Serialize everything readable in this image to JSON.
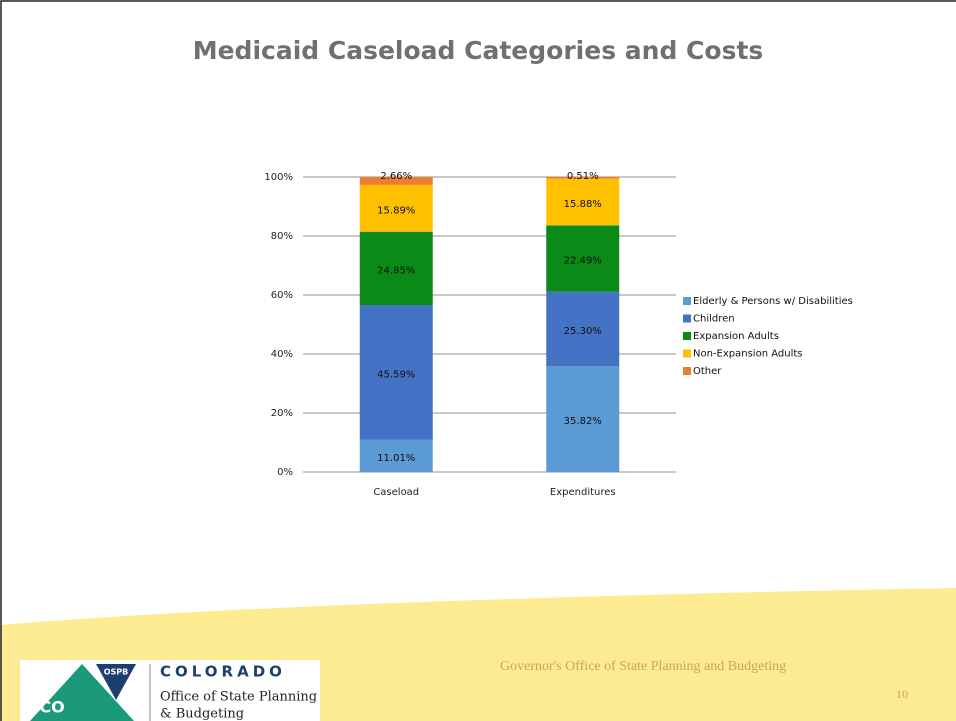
{
  "chart_data": {
    "type": "stacked_bar",
    "title": "Medicaid Caseload Categories and Costs",
    "categories": [
      "Caseload",
      "Expenditures"
    ],
    "series": [
      {
        "name": "Elderly & Persons w/ Disabilities",
        "color": "#5b9bd5",
        "values": [
          11.01,
          35.82
        ],
        "value_labels": [
          "11.01%",
          "35.82%"
        ]
      },
      {
        "name": "Children",
        "color": "#4472c4",
        "values": [
          45.59,
          25.3
        ],
        "value_labels": [
          "45.59%",
          "25.30%"
        ]
      },
      {
        "name": "Expansion Adults",
        "color": "#0a8a16",
        "values": [
          24.85,
          22.49
        ],
        "value_labels": [
          "24.85%",
          "22.49%"
        ]
      },
      {
        "name": "Non-Expansion Adults",
        "color": "#ffc000",
        "values": [
          15.89,
          15.88
        ],
        "value_labels": [
          "15.89%",
          "15.88%"
        ]
      },
      {
        "name": "Other",
        "color": "#ed7d31",
        "values": [
          2.66,
          0.51
        ],
        "value_labels": [
          "2.66%",
          "0.51%"
        ]
      }
    ],
    "ylim": [
      0,
      100
    ],
    "yticks": [
      {
        "value": 0,
        "label": "0%"
      },
      {
        "value": 20,
        "label": "20%"
      },
      {
        "value": 40,
        "label": "40%"
      },
      {
        "value": 60,
        "label": "60%"
      },
      {
        "value": 80,
        "label": "80%"
      },
      {
        "value": 100,
        "label": "100%"
      }
    ],
    "grid": true,
    "legend": "right"
  },
  "footer": {
    "text": "Governor's Office of State Planning and Budgeting",
    "page": "10"
  },
  "logo": {
    "badge": "OSPB",
    "mark": "CO",
    "name": "COLORADO",
    "line1": "Office of State Planning",
    "line2": "& Budgeting"
  }
}
